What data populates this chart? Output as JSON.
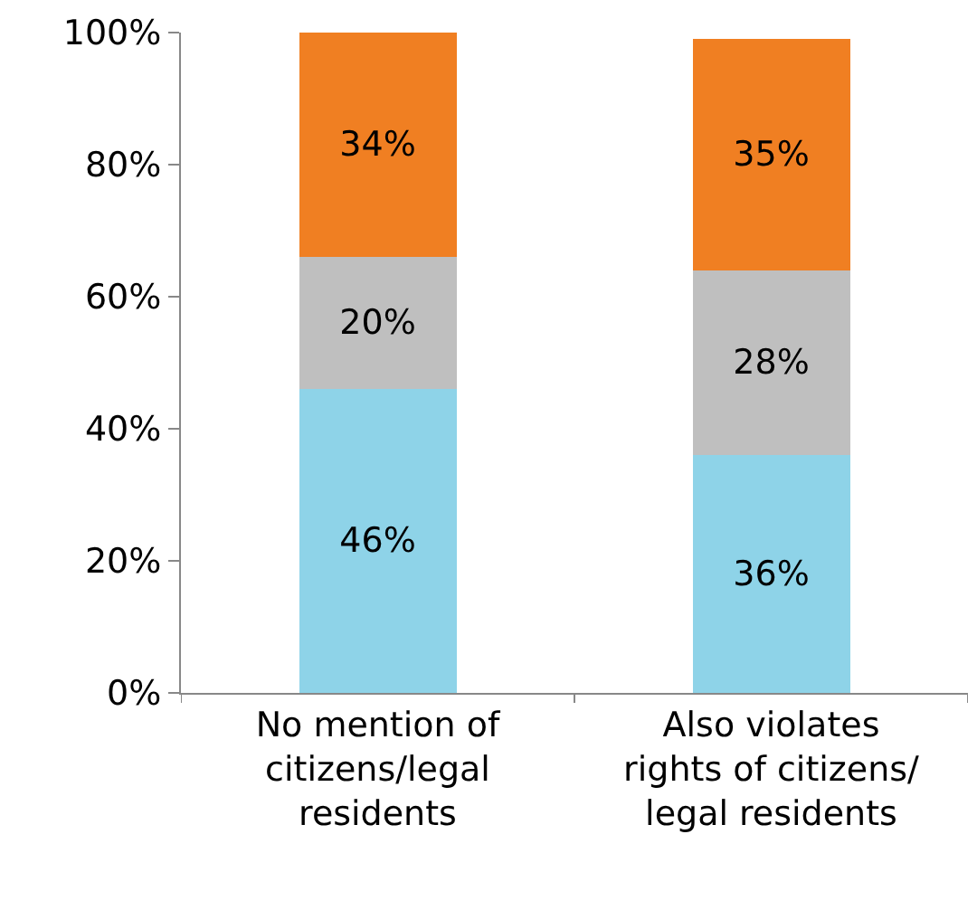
{
  "chart_data": {
    "type": "bar",
    "stacked": true,
    "categories": [
      "No mention of citizens/legal residents",
      "Also violates rights of citizens/ legal residents"
    ],
    "series": [
      {
        "color": "#8ed3e8",
        "values": [
          46,
          36
        ],
        "value_labels": [
          "46%",
          "36%"
        ]
      },
      {
        "color": "#bfbfbf",
        "values": [
          20,
          28
        ],
        "value_labels": [
          "20%",
          "28%"
        ]
      },
      {
        "color": "#f07f22",
        "values": [
          34,
          35
        ],
        "value_labels": [
          "34%",
          "35%"
        ]
      }
    ],
    "ylim": [
      0,
      100
    ],
    "yticks": [
      {
        "value": 0,
        "label": "0%"
      },
      {
        "value": 20,
        "label": "20%"
      },
      {
        "value": 40,
        "label": "40%"
      },
      {
        "value": 60,
        "label": "60%"
      },
      {
        "value": 80,
        "label": "80%"
      },
      {
        "value": 100,
        "label": "100%"
      }
    ],
    "grid": false
  }
}
